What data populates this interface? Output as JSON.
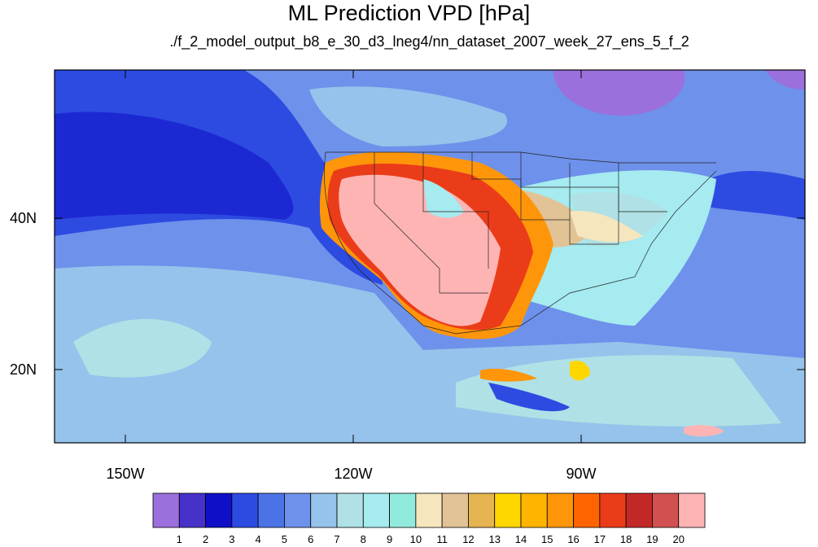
{
  "title": "ML Prediction VPD [hPa]",
  "subtitle": "./f_2_model_output_b8_e_30_d3_lneg4/nn_dataset_2007_week_27_ens_5_f_2",
  "axes": {
    "lat_labels": [
      "40N",
      "20N"
    ],
    "lon_labels": [
      "150W",
      "120W",
      "90W"
    ]
  },
  "colorbar": {
    "labels": [
      "1",
      "2",
      "3",
      "4",
      "5",
      "6",
      "7",
      "8",
      "9",
      "10",
      "11",
      "12",
      "13",
      "14",
      "15",
      "16",
      "17",
      "18",
      "19",
      "20"
    ],
    "colors": [
      "#9b6fdc",
      "#4632c8",
      "#0f0fc8",
      "#2d4be1",
      "#4b73e6",
      "#6e91eb",
      "#96c3eb",
      "#afe1e6",
      "#a5ebf0",
      "#91ebdc",
      "#f5e6be",
      "#e1c396",
      "#e6b450",
      "#ffd700",
      "#ffb400",
      "#ff960a",
      "#ff6400",
      "#eb3c19",
      "#c32828",
      "#d25050",
      "#ffb4b4"
    ]
  }
}
